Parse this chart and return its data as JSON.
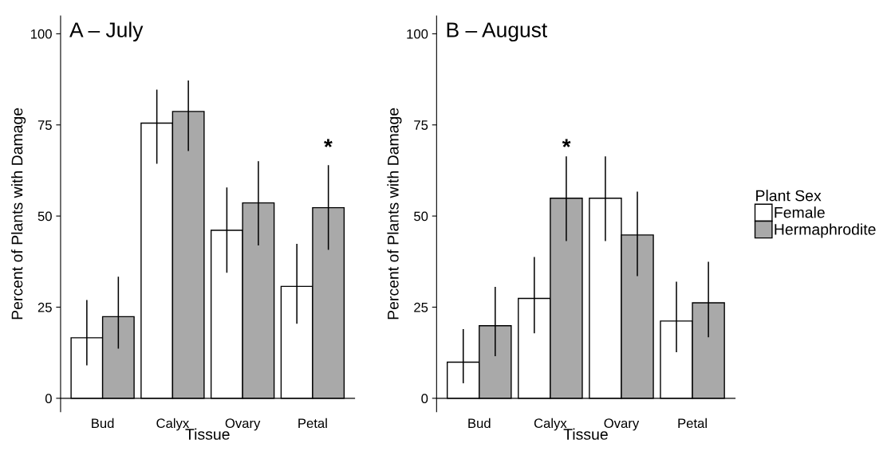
{
  "chart_data": [
    {
      "type": "bar",
      "title": "A – July",
      "xlabel": "Tissue",
      "ylabel": "Percent of Plants with Damage",
      "categories": [
        "Bud",
        "Calyx",
        "Ovary",
        "Petal"
      ],
      "series": [
        {
          "name": "Female",
          "color": "#ffffff",
          "values": [
            16.6,
            75.5,
            46.1,
            30.7
          ],
          "errors": [
            [
              9.2,
              26.8
            ],
            [
              64.5,
              84.5
            ],
            [
              34.6,
              57.7
            ],
            [
              20.6,
              42.2
            ]
          ]
        },
        {
          "name": "Hermaphrodite",
          "color": "#a9a9a9",
          "values": [
            22.4,
            78.7,
            53.6,
            52.3
          ],
          "errors": [
            [
              13.8,
              33.2
            ],
            [
              68,
              87
            ],
            [
              42.1,
              64.9
            ],
            [
              40.9,
              63.8
            ]
          ]
        }
      ],
      "ylim": [
        -3.7,
        104.9
      ],
      "yticks": [
        0,
        25,
        50,
        75,
        100
      ],
      "grid": false,
      "legend": "right",
      "annotations": [
        "*"
      ]
    },
    {
      "type": "bar",
      "title": "B – August",
      "xlabel": "Tissue",
      "ylabel": "Percent of Plants with Damage",
      "categories": [
        "Bud",
        "Calyx",
        "Ovary",
        "Petal"
      ],
      "series": [
        {
          "name": "Female",
          "color": "#ffffff",
          "values": [
            9.9,
            27.4,
            54.9,
            21.2
          ],
          "errors": [
            [
              4.3,
              18.8
            ],
            [
              18,
              38.6
            ],
            [
              43.3,
              66.2
            ],
            [
              12.8,
              31.8
            ]
          ]
        },
        {
          "name": "Hermaphrodite",
          "color": "#a9a9a9",
          "values": [
            19.9,
            54.9,
            44.8,
            26.2
          ],
          "errors": [
            [
              11.7,
              30.4
            ],
            [
              43.3,
              66.2
            ],
            [
              33.7,
              56.5
            ],
            [
              16.9,
              37.3
            ]
          ]
        }
      ],
      "ylim": [
        -3.7,
        104.9
      ],
      "yticks": [
        0,
        25,
        50,
        75,
        100
      ],
      "grid": false,
      "legend": "right",
      "legend_title": "Plant Sex",
      "annotations": [
        "*"
      ]
    }
  ]
}
